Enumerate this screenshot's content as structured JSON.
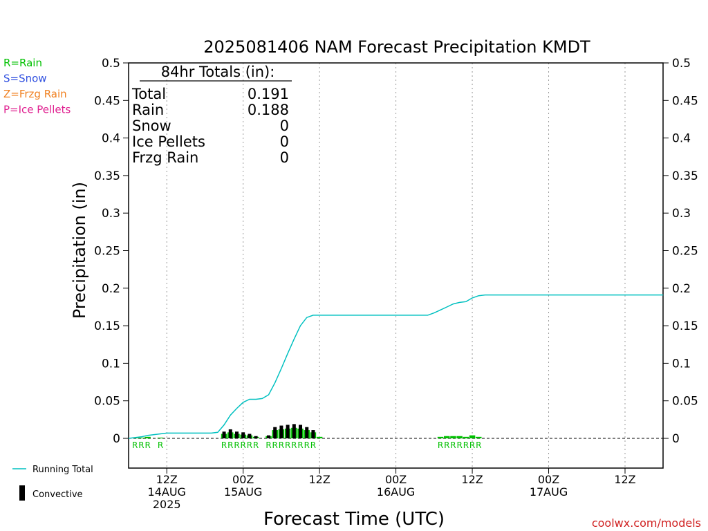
{
  "chart_data": {
    "type": "bar",
    "title": "2025081406 NAM Forecast Precipitation KMDT",
    "xlabel": "Forecast Time (UTC)",
    "ylabel": "Precipitation (in)",
    "ylim": [
      0,
      0.5
    ],
    "y_ticks": [
      "0",
      "0.05",
      "0.1",
      "0.15",
      "0.2",
      "0.25",
      "0.3",
      "0.35",
      "0.4",
      "0.45",
      "0.5"
    ],
    "x_ticks": [
      {
        "hour": 6,
        "line1": "12Z",
        "line2": "14AUG",
        "line3": "2025"
      },
      {
        "hour": 18,
        "line1": "00Z",
        "line2": "15AUG",
        "line3": ""
      },
      {
        "hour": 30,
        "line1": "12Z",
        "line2": "",
        "line3": ""
      },
      {
        "hour": 42,
        "line1": "00Z",
        "line2": "16AUG",
        "line3": ""
      },
      {
        "hour": 54,
        "line1": "12Z",
        "line2": "",
        "line3": ""
      },
      {
        "hour": 66,
        "line1": "00Z",
        "line2": "17AUG",
        "line3": ""
      },
      {
        "hour": 78,
        "line1": "12Z",
        "line2": "",
        "line3": ""
      }
    ],
    "xlim": [
      0,
      84
    ],
    "series": [
      {
        "name": "Running Total",
        "color": "#00c0c0",
        "x": [
          0,
          1,
          2,
          3,
          4,
          5,
          6,
          7,
          8,
          9,
          10,
          11,
          12,
          13,
          14,
          15,
          16,
          17,
          18,
          19,
          20,
          21,
          22,
          23,
          24,
          25,
          26,
          27,
          28,
          29,
          30,
          31,
          32,
          33,
          34,
          35,
          36,
          37,
          38,
          39,
          40,
          41,
          42,
          43,
          44,
          45,
          46,
          47,
          48,
          49,
          50,
          51,
          52,
          53,
          54,
          55,
          56,
          57,
          58,
          59,
          60,
          61,
          62,
          63,
          64,
          65,
          66,
          67,
          68,
          69,
          70,
          71,
          72,
          73,
          74,
          75,
          76,
          77,
          78,
          79,
          80,
          81,
          82,
          83,
          84
        ],
        "values": [
          0,
          0.001,
          0.002,
          0.004,
          0.005,
          0.006,
          0.007,
          0.007,
          0.007,
          0.007,
          0.007,
          0.007,
          0.007,
          0.007,
          0.008,
          0.018,
          0.031,
          0.04,
          0.048,
          0.052,
          0.052,
          0.053,
          0.058,
          0.074,
          0.093,
          0.113,
          0.132,
          0.15,
          0.161,
          0.164,
          0.164,
          0.164,
          0.164,
          0.164,
          0.164,
          0.164,
          0.164,
          0.164,
          0.164,
          0.164,
          0.164,
          0.164,
          0.164,
          0.164,
          0.164,
          0.164,
          0.164,
          0.164,
          0.167,
          0.171,
          0.175,
          0.179,
          0.181,
          0.182,
          0.187,
          0.19,
          0.191,
          0.191,
          0.191,
          0.191,
          0.191,
          0.191,
          0.191,
          0.191,
          0.191,
          0.191,
          0.191,
          0.191,
          0.191,
          0.191,
          0.191,
          0.191,
          0.191,
          0.191,
          0.191,
          0.191,
          0.191,
          0.191,
          0.191,
          0.191,
          0.191,
          0.191,
          0.191,
          0.191,
          0.191
        ]
      },
      {
        "name": "Convective",
        "color": "#000000",
        "x": [
          15,
          16,
          17,
          18,
          19,
          20,
          22,
          23,
          24,
          25,
          26,
          27,
          28,
          29
        ],
        "values": [
          0.009,
          0.012,
          0.009,
          0.008,
          0.006,
          0.003,
          0.004,
          0.015,
          0.017,
          0.018,
          0.019,
          0.018,
          0.015,
          0.011
        ]
      },
      {
        "name": "Rain",
        "color": "#00c000",
        "x": [
          1,
          2,
          3,
          5,
          15,
          16,
          17,
          18,
          19,
          20,
          22,
          23,
          24,
          25,
          26,
          27,
          28,
          29,
          30,
          49,
          50,
          51,
          52,
          53,
          54,
          55
        ],
        "values": [
          0.001,
          0.001,
          0.002,
          0.001,
          0.006,
          0.008,
          0.006,
          0.005,
          0.004,
          0.002,
          0.003,
          0.011,
          0.012,
          0.013,
          0.014,
          0.013,
          0.011,
          0.008,
          0.002,
          0.002,
          0.003,
          0.003,
          0.003,
          0.002,
          0.004,
          0.002
        ]
      }
    ],
    "ptype_marks": [
      {
        "hour": 1,
        "label": "R"
      },
      {
        "hour": 2,
        "label": "R"
      },
      {
        "hour": 3,
        "label": "R"
      },
      {
        "hour": 5,
        "label": "R"
      },
      {
        "hour": 15,
        "label": "R"
      },
      {
        "hour": 16,
        "label": "R"
      },
      {
        "hour": 17,
        "label": "R"
      },
      {
        "hour": 18,
        "label": "R"
      },
      {
        "hour": 19,
        "label": "R"
      },
      {
        "hour": 20,
        "label": "R"
      },
      {
        "hour": 22,
        "label": "R"
      },
      {
        "hour": 23,
        "label": "R"
      },
      {
        "hour": 24,
        "label": "R"
      },
      {
        "hour": 25,
        "label": "R"
      },
      {
        "hour": 26,
        "label": "R"
      },
      {
        "hour": 27,
        "label": "R"
      },
      {
        "hour": 28,
        "label": "R"
      },
      {
        "hour": 29,
        "label": "R"
      },
      {
        "hour": 49,
        "label": "R"
      },
      {
        "hour": 50,
        "label": "R"
      },
      {
        "hour": 51,
        "label": "R"
      },
      {
        "hour": 52,
        "label": "R"
      },
      {
        "hour": 53,
        "label": "R"
      },
      {
        "hour": 54,
        "label": "R"
      },
      {
        "hour": 55,
        "label": "R"
      }
    ],
    "totals_box": {
      "heading": "84hr Totals (in):",
      "rows": [
        {
          "label": "Total",
          "value": "0.191"
        },
        {
          "label": "Rain",
          "value": "0.188"
        },
        {
          "label": "Snow",
          "value": "0"
        },
        {
          "label": "Ice Pellets",
          "value": "0"
        },
        {
          "label": "Frzg Rain",
          "value": "0"
        }
      ]
    },
    "ptype_legend": [
      {
        "text": "R=Rain",
        "color": "#00c000"
      },
      {
        "text": "S=Snow",
        "color": "#3050e0"
      },
      {
        "text": "Z=Frzg Rain",
        "color": "#f08020"
      },
      {
        "text": "P=Ice Pellets",
        "color": "#e02090"
      }
    ],
    "legend": [
      {
        "label": "Running Total",
        "symbol": "line",
        "color": "#00c0c0"
      },
      {
        "label": "Convective",
        "symbol": "bar",
        "color": "#000000"
      }
    ],
    "grid": "vertical dotted at x ticks",
    "credit": "coolwx.com/models",
    "credit_color": "#d02020"
  }
}
